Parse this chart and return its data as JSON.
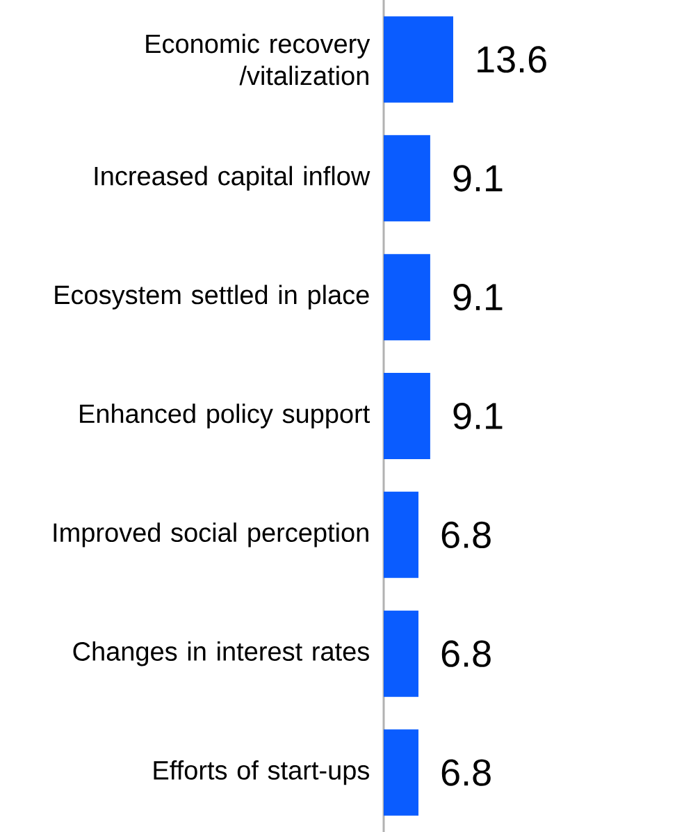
{
  "chart_data": {
    "type": "bar",
    "orientation": "horizontal",
    "categories": [
      "Economic recovery /vitalization",
      "Increased capital inflow",
      "Ecosystem settled in place",
      "Enhanced policy support",
      "Improved social perception",
      "Changes in interest rates",
      "Efforts of start-ups"
    ],
    "values": [
      13.6,
      9.1,
      9.1,
      9.1,
      6.8,
      6.8,
      6.8
    ],
    "color": "#0a5cff",
    "data_labels": true
  }
}
